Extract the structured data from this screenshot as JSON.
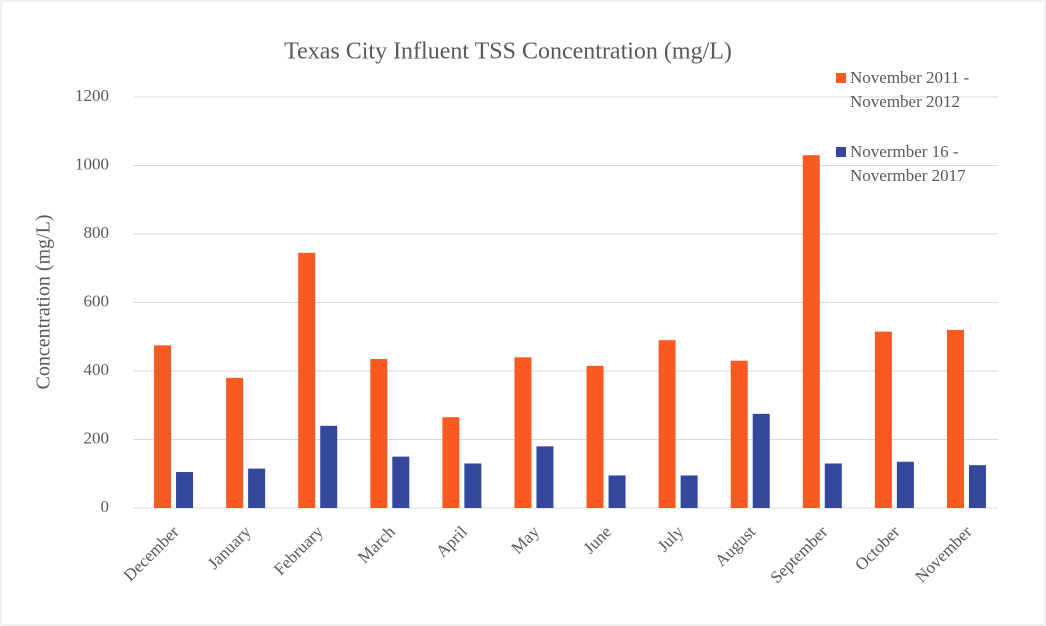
{
  "chart_data": {
    "type": "bar",
    "title": "Texas City Influent TSS Concentration (mg/L)",
    "y_label": "Concentration (mg/L)",
    "categories": [
      "December",
      "January",
      "February",
      "March",
      "April",
      "May",
      "June",
      "July",
      "August",
      "September",
      "October",
      "November"
    ],
    "series": [
      {
        "name": "November  2011 - November 2012",
        "color": "#f95a22",
        "values": [
          475,
          380,
          745,
          435,
          265,
          440,
          415,
          490,
          430,
          1030,
          515,
          520
        ]
      },
      {
        "name": "Novermber  16 - Novermber 2017",
        "color": "#33489c",
        "values": [
          105,
          115,
          240,
          150,
          130,
          180,
          95,
          95,
          275,
          130,
          135,
          125
        ]
      }
    ],
    "ylim": [
      0,
      1200
    ],
    "yticks": [
      0,
      200,
      400,
      600,
      800,
      1000,
      1200
    ],
    "grid": true,
    "legend": "top-right"
  }
}
